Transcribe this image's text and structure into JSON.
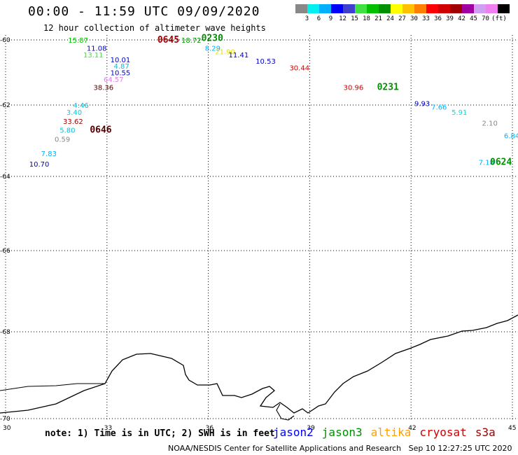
{
  "header": {
    "title": "00:00 - 11:59 UTC 09/09/2020",
    "subtitle": "12 hour collection of altimeter wave heights"
  },
  "scale": {
    "colors": [
      "#888888",
      "#00f0f0",
      "#00b0ff",
      "#0000ff",
      "#4040d0",
      "#40e040",
      "#00c000",
      "#009000",
      "#ffff00",
      "#ffc000",
      "#ff8000",
      "#ff0000",
      "#d00000",
      "#a00000",
      "#a000a0",
      "#d0a0f0",
      "#f080f0",
      "#000000"
    ],
    "labels": [
      "3",
      "6",
      "9",
      "12",
      "15",
      "18",
      "21",
      "24",
      "27",
      "30",
      "33",
      "36",
      "39",
      "42",
      "45",
      "70",
      "(ft)"
    ]
  },
  "axes": {
    "lon_ticks": [
      "30",
      "33",
      "36",
      "39",
      "42",
      "45"
    ],
    "lat_ticks": [
      "-60",
      "-62",
      "-64",
      "-66",
      "-68",
      "-70"
    ]
  },
  "wave_labels": [
    {
      "text": "15.87",
      "color": "#00c000",
      "lon": 31.85,
      "lat": -60.0
    },
    {
      "text": "18.72",
      "color": "#009000",
      "lon": 35.2,
      "lat": -60.0
    },
    {
      "text": "8.29",
      "color": "#00b0ff",
      "lon": 35.9,
      "lat": -60.25
    },
    {
      "text": "21.90",
      "color": "#e0e000",
      "lon": 36.2,
      "lat": -60.35
    },
    {
      "text": "11.08",
      "color": "#0000c0",
      "lon": 32.4,
      "lat": -60.25
    },
    {
      "text": "13.11",
      "color": "#40e040",
      "lon": 32.3,
      "lat": -60.45
    },
    {
      "text": "11.41",
      "color": "#0000c0",
      "lon": 36.6,
      "lat": -60.45
    },
    {
      "text": "10.01",
      "color": "#0000c0",
      "lon": 33.1,
      "lat": -60.6
    },
    {
      "text": "10.53",
      "color": "#0000c0",
      "lon": 37.4,
      "lat": -60.65
    },
    {
      "text": "4.87",
      "color": "#00c0e0",
      "lon": 33.2,
      "lat": -60.8
    },
    {
      "text": "30.44",
      "color": "#d00000",
      "lon": 38.4,
      "lat": -60.85
    },
    {
      "text": "10.55",
      "color": "#0000c0",
      "lon": 33.1,
      "lat": -61.0
    },
    {
      "text": "64.57",
      "color": "#e080f0",
      "lon": 32.9,
      "lat": -61.2
    },
    {
      "text": "38.36",
      "color": "#500000",
      "lon": 32.6,
      "lat": -61.45
    },
    {
      "text": "30.96",
      "color": "#d00000",
      "lon": 40.0,
      "lat": -61.45
    },
    {
      "text": "9.93",
      "color": "#0000c0",
      "lon": 42.1,
      "lat": -61.95
    },
    {
      "text": "7.66",
      "color": "#00b0ff",
      "lon": 42.6,
      "lat": -62.05
    },
    {
      "text": "4.46",
      "color": "#00c0e0",
      "lon": 32.0,
      "lat": -62.0
    },
    {
      "text": "5.91",
      "color": "#00e0e0",
      "lon": 43.2,
      "lat": -62.2
    },
    {
      "text": "3.40",
      "color": "#00d0e0",
      "lon": 31.8,
      "lat": -62.2
    },
    {
      "text": "33.62",
      "color": "#a00000",
      "lon": 31.7,
      "lat": -62.45
    },
    {
      "text": "2.10",
      "color": "#888888",
      "lon": 44.1,
      "lat": -62.5
    },
    {
      "text": "5.80",
      "color": "#00c0e0",
      "lon": 31.6,
      "lat": -62.7
    },
    {
      "text": "6.84",
      "color": "#00b0ff",
      "lon": 44.8,
      "lat": -62.85
    },
    {
      "text": "0.59",
      "color": "#888888",
      "lon": 31.45,
      "lat": -62.95
    },
    {
      "text": "7.83",
      "color": "#00b0ff",
      "lon": 31.05,
      "lat": -63.35
    },
    {
      "text": "10.70",
      "color": "#0000c0",
      "lon": 30.7,
      "lat": -63.65
    },
    {
      "text": "7.18",
      "color": "#00b0ff",
      "lon": 44.0,
      "lat": -63.6
    }
  ],
  "time_labels": [
    {
      "text": "0645",
      "color": "#a00000",
      "lon": 34.7,
      "lat": -60.0
    },
    {
      "text": "0230",
      "color": "#009000",
      "lon": 36.0,
      "lat": -59.95
    },
    {
      "text": "0231",
      "color": "#009000",
      "lon": 41.2,
      "lat": -61.45
    },
    {
      "text": "0646",
      "color": "#500000",
      "lon": 32.7,
      "lat": -62.7
    },
    {
      "text": "0624",
      "color": "#009000",
      "lon": 45.0,
      "lat": -63.6
    }
  ],
  "footer": {
    "note": "note: 1) Time is in UTC; 2) SWH is in feet",
    "legend": [
      {
        "text": "jason2",
        "color": "#0000ff"
      },
      {
        "text": "jason3",
        "color": "#009000"
      },
      {
        "text": "altika",
        "color": "#ffa000"
      },
      {
        "text": "cryosat",
        "color": "#d00000"
      },
      {
        "text": "s3a",
        "color": "#a00000"
      }
    ],
    "credit": "NOAA/NESDIS Center for Satellite Applications and Research   Sep 10 12:27:25 UTC 2020"
  }
}
